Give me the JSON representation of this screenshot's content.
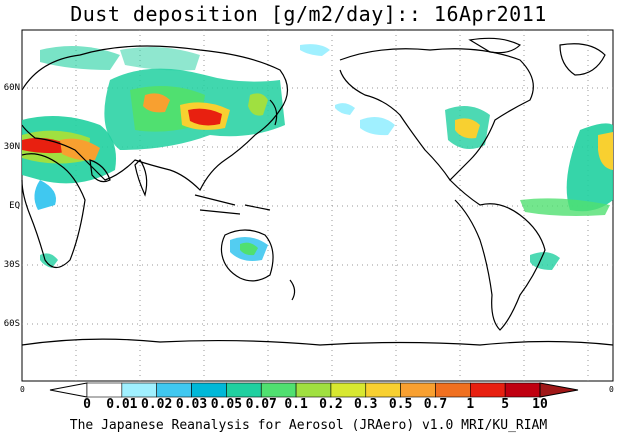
{
  "title": "Dust deposition [g/m2/day]:: 16Apr2011",
  "footer": "The Japanese Reanalysis for Aerosol (JRAero) v1.0 MRI/KU_RIAM",
  "lat_labels": [
    "60N",
    "30N",
    "EQ",
    "30S",
    "60S"
  ],
  "corner_labels": {
    "left": "0",
    "right": "0"
  },
  "colorbar": {
    "labels": [
      "0",
      "0.01",
      "0.02",
      "0.03",
      "0.05",
      "0.07",
      "0.1",
      "0.2",
      "0.3",
      "0.5",
      "0.7",
      "1",
      "5",
      "10"
    ],
    "colors": [
      "#ffffff",
      "#a0f0ff",
      "#40c8f0",
      "#00b8d8",
      "#20d0a0",
      "#50e070",
      "#a0e040",
      "#d8e830",
      "#f8d030",
      "#f8a030",
      "#f07020",
      "#e82010",
      "#c00010",
      "#901010"
    ],
    "left_arrow_color": "#ffffff",
    "right_arrow_color": "#a01818"
  }
}
